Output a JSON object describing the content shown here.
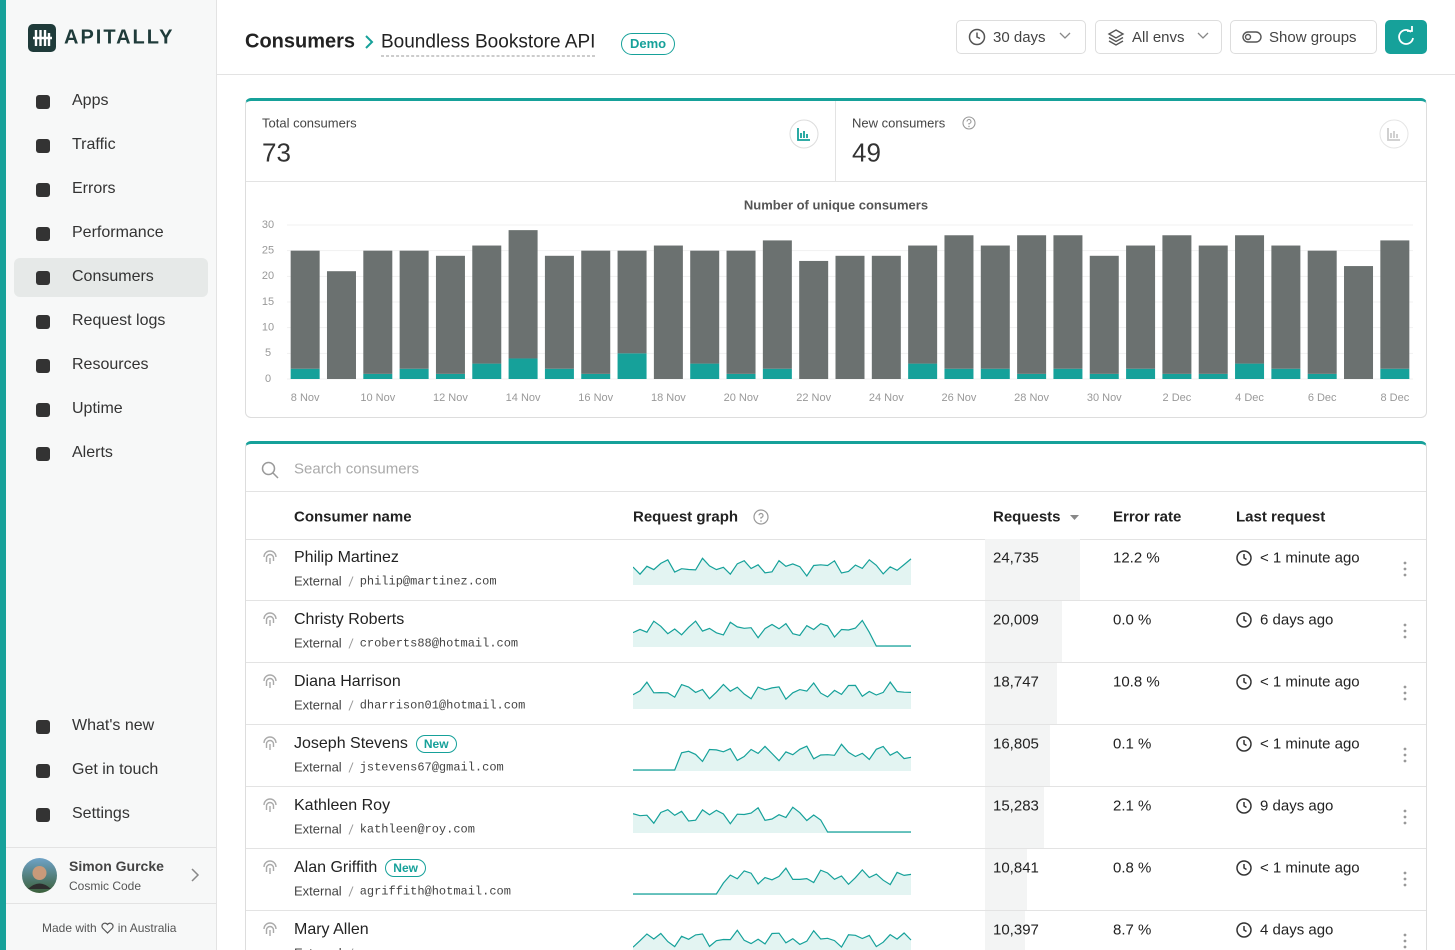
{
  "sidebar": {
    "brand": "APITALLY",
    "nav": [
      "Apps",
      "Traffic",
      "Errors",
      "Performance",
      "Consumers",
      "Request logs",
      "Resources",
      "Uptime",
      "Alerts"
    ],
    "bottom_nav": [
      "What's new",
      "Get in touch",
      "Settings"
    ],
    "user": {
      "name": "Simon Gurcke",
      "org": "Cosmic Code"
    },
    "footer": {
      "before": "Made with",
      "after": "in Australia"
    }
  },
  "header": {
    "section": "Consumers",
    "app": "Boundless Bookstore API",
    "badge": "Demo",
    "filters": [
      "30 days",
      "All envs",
      "Show groups"
    ]
  },
  "stats": [
    {
      "label": "Total consumers",
      "value": 73
    },
    {
      "label": "New consumers",
      "value": 49
    }
  ],
  "chart_data": {
    "type": "bar",
    "stacked": true,
    "title": "Number of unique consumers",
    "categories": [
      "8 Nov",
      null,
      "10 Nov",
      null,
      "12 Nov",
      null,
      "14 Nov",
      null,
      "16 Nov",
      null,
      "18 Nov",
      null,
      "20 Nov",
      null,
      "22 Nov",
      null,
      "24 Nov",
      null,
      "26 Nov",
      null,
      "28 Nov",
      null,
      "30 Nov",
      null,
      "2 Dec",
      null,
      "4 Dec",
      null,
      "6 Dec",
      null,
      "8 Dec"
    ],
    "series": [
      {
        "color": "#16a19a",
        "values": [
          2,
          0,
          1,
          2,
          1,
          3,
          4,
          2,
          1,
          5,
          0,
          3,
          1,
          2,
          0,
          0,
          0,
          3,
          2,
          2,
          1,
          2,
          1,
          2,
          1,
          1,
          3,
          2,
          1,
          0,
          2
        ]
      },
      {
        "color": "#6b7170",
        "values": [
          23,
          21,
          24,
          23,
          23,
          23,
          25,
          22,
          24,
          20,
          26,
          22,
          24,
          25,
          23,
          24,
          24,
          23,
          26,
          24,
          27,
          26,
          23,
          24,
          27,
          25,
          25,
          24,
          24,
          22,
          25
        ]
      }
    ],
    "ylim": [
      0,
      30
    ],
    "yticks": [
      0,
      5,
      10,
      15,
      20,
      25,
      30
    ],
    "grid": true
  },
  "table": {
    "search_placeholder": "Search consumers",
    "columns": [
      "Consumer name",
      "Request graph",
      "Requests",
      "Error rate",
      "Last request"
    ],
    "rows": [
      {
        "name": "Philip Martinez",
        "group": "External",
        "identifier": "philip@martinez.com",
        "requests": "24,735",
        "error_rate": "12.2 %",
        "last_request": "< 1 minute ago"
      },
      {
        "name": "Christy Roberts",
        "group": "External",
        "identifier": "croberts88@hotmail.com",
        "requests": "20,009",
        "error_rate": "0.0 %",
        "last_request": "6 days ago"
      },
      {
        "name": "Diana Harrison",
        "group": "External",
        "identifier": "dharrison01@hotmail.com",
        "requests": "18,747",
        "error_rate": "10.8 %",
        "last_request": "< 1 minute ago"
      },
      {
        "name": "Joseph Stevens",
        "badge": "New",
        "group": "External",
        "identifier": "jstevens67@gmail.com",
        "requests": "16,805",
        "error_rate": "0.1 %",
        "last_request": "< 1 minute ago"
      },
      {
        "name": "Kathleen Roy",
        "group": "External",
        "identifier": "kathleen@roy.com",
        "requests": "15,283",
        "error_rate": "2.1 %",
        "last_request": "9 days ago"
      },
      {
        "name": "Alan Griffith",
        "badge": "New",
        "group": "External",
        "identifier": "agriffith@hotmail.com",
        "requests": "10,841",
        "error_rate": "0.8 %",
        "last_request": "< 1 minute ago"
      },
      {
        "name": "Mary Allen",
        "group": "External",
        "requests": "10,397",
        "error_rate": "8.7 %",
        "last_request": "4 days ago"
      }
    ]
  }
}
